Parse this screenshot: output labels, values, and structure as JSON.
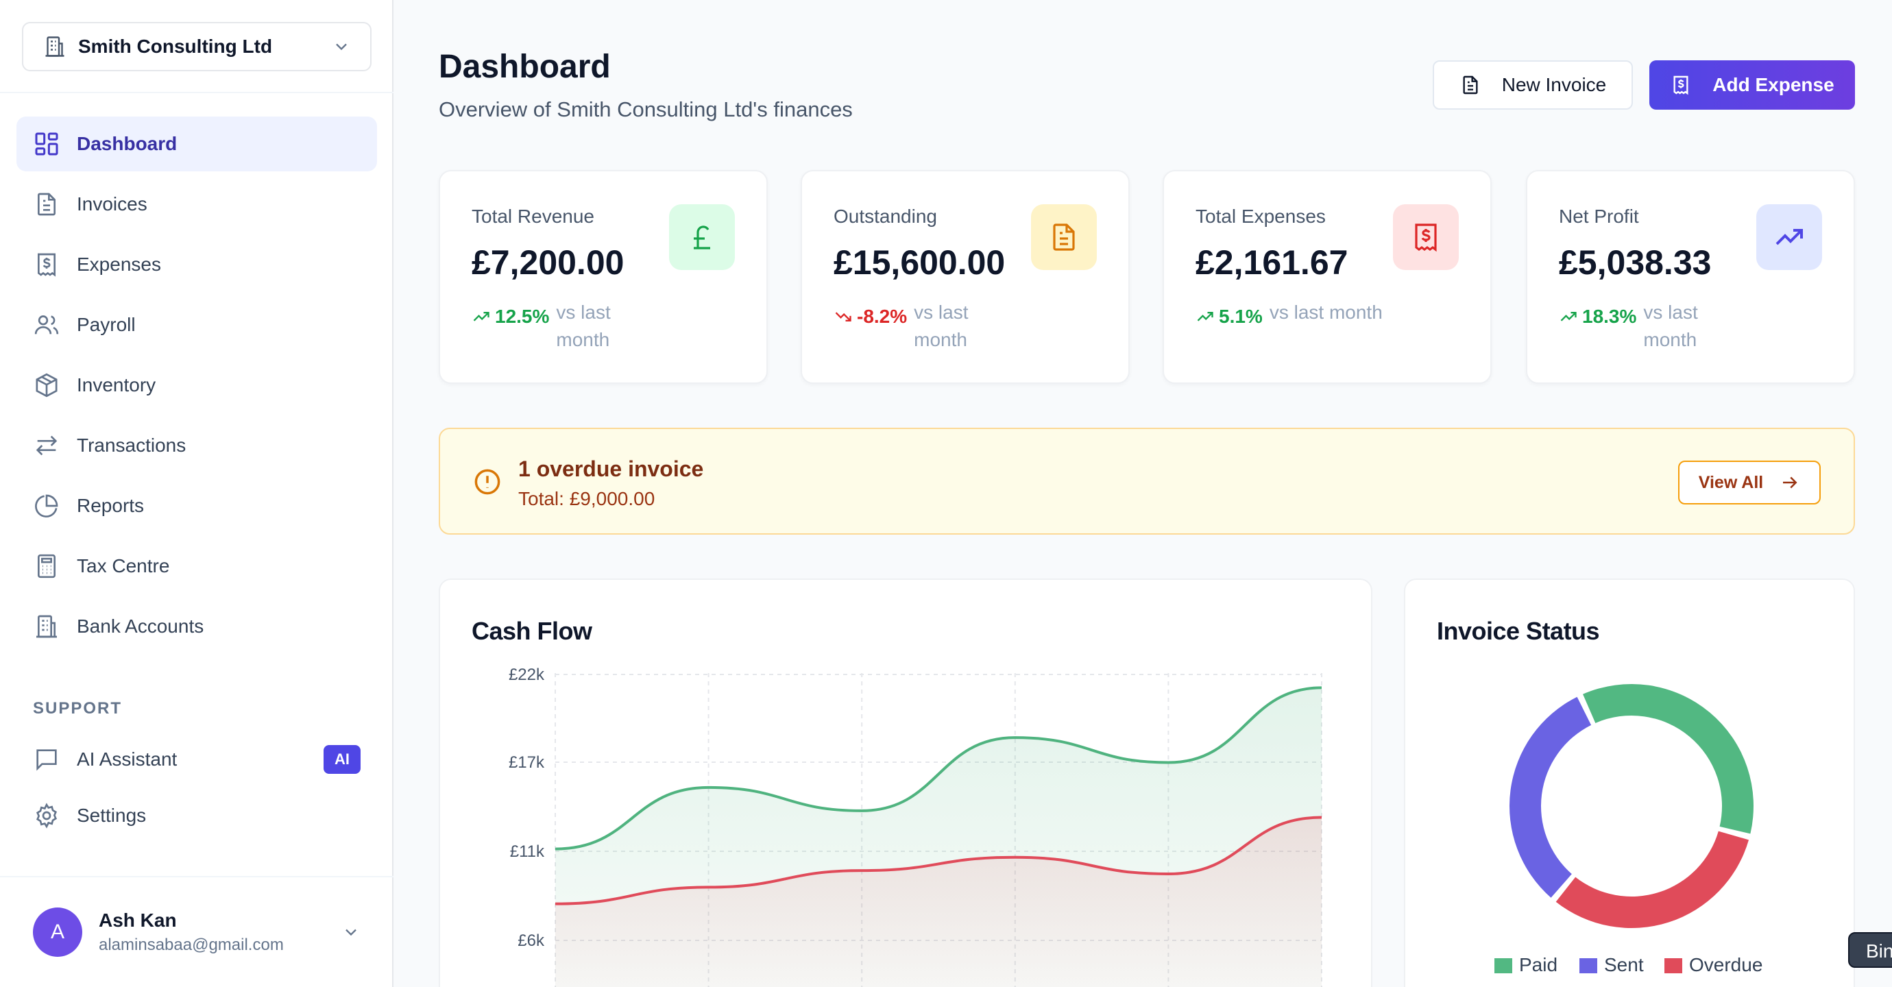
{
  "sidebar": {
    "org": "Smith Consulting Ltd",
    "nav": [
      {
        "label": "Dashboard",
        "icon": "dashboard-icon"
      },
      {
        "label": "Invoices",
        "icon": "document-icon"
      },
      {
        "label": "Expenses",
        "icon": "receipt-icon"
      },
      {
        "label": "Payroll",
        "icon": "users-icon"
      },
      {
        "label": "Inventory",
        "icon": "box-icon"
      },
      {
        "label": "Transactions",
        "icon": "arrows-icon"
      },
      {
        "label": "Reports",
        "icon": "pie-chart-icon"
      },
      {
        "label": "Tax Centre",
        "icon": "calculator-icon"
      },
      {
        "label": "Bank Accounts",
        "icon": "building-icon"
      }
    ],
    "support_title": "SUPPORT",
    "support": [
      {
        "label": "AI Assistant",
        "icon": "chat-icon",
        "badge": "AI"
      },
      {
        "label": "Settings",
        "icon": "gear-icon"
      }
    ],
    "user": {
      "initial": "A",
      "name": "Ash Kan",
      "email": "alaminsabaa@gmail.com"
    }
  },
  "header": {
    "title": "Dashboard",
    "subtitle": "Overview of Smith Consulting Ltd's finances",
    "new_invoice": "New Invoice",
    "add_expense": "Add Expense"
  },
  "stats": [
    {
      "label": "Total Revenue",
      "value": "£7,200.00",
      "pct": "12.5%",
      "vs": "vs last month",
      "trend": "up",
      "icon": "pound-icon",
      "bg": "#dcfce7",
      "fg": "#16a34a"
    },
    {
      "label": "Outstanding",
      "value": "£15,600.00",
      "pct": "-8.2%",
      "vs": "vs last month",
      "trend": "down",
      "icon": "document-icon",
      "bg": "#fef3c7",
      "fg": "#d97706"
    },
    {
      "label": "Total Expenses",
      "value": "£2,161.67",
      "pct": "5.1%",
      "vs": "vs last month",
      "trend": "up",
      "icon": "receipt-icon",
      "bg": "#fee2e2",
      "fg": "#dc2626"
    },
    {
      "label": "Net Profit",
      "value": "£5,038.33",
      "pct": "18.3%",
      "vs": "vs last month",
      "trend": "up",
      "icon": "trending-up-icon",
      "bg": "#e0e7ff",
      "fg": "#4f46e5"
    }
  ],
  "alert": {
    "title": "1 overdue invoice",
    "total": "Total: £9,000.00",
    "button": "View All"
  },
  "cashflow": {
    "title": "Cash Flow"
  },
  "invoice_status": {
    "title": "Invoice Status"
  },
  "tooltip_stub": "Bin",
  "chart_data": [
    {
      "type": "area",
      "title": "Cash Flow",
      "y_ticks": [
        "£22k",
        "£17k",
        "£11k",
        "£6k"
      ],
      "ylim": [
        6000,
        22000
      ],
      "x": [
        0,
        1,
        2,
        3,
        4,
        5
      ],
      "grid": true,
      "series": [
        {
          "name": "",
          "color": "#4fb37f",
          "values": [
            11500,
            15200,
            13800,
            18200,
            16700,
            21200
          ]
        },
        {
          "name": "",
          "color": "#e04b5a",
          "values": [
            8200,
            9200,
            10200,
            11000,
            10000,
            13400
          ]
        }
      ]
    },
    {
      "type": "pie",
      "title": "Invoice Status",
      "legend_position": "bottom",
      "slices": [
        {
          "name": "Paid",
          "value": 0.36,
          "color": "#52b882"
        },
        {
          "name": "Overdue",
          "value": 0.32,
          "color": "#e04b5a"
        },
        {
          "name": "Sent",
          "value": 0.32,
          "color": "#6a63e3"
        }
      ]
    }
  ]
}
